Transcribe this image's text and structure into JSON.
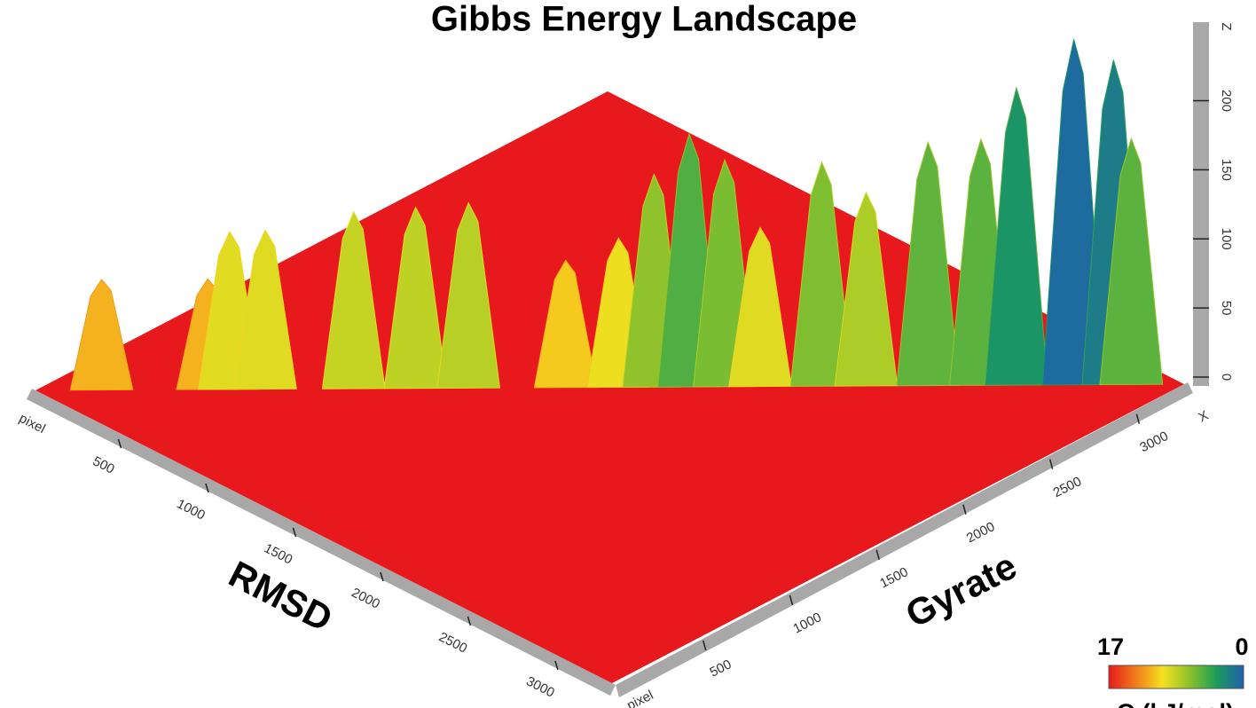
{
  "chart_data": {
    "type": "surface",
    "title": "Gibbs Energy Landscape",
    "x_label": "Gyrate",
    "y_label": "RMSD",
    "x_unit": "pixel",
    "y_unit": "pixel",
    "x_axis_name": "X",
    "z_axis_name": "Z",
    "x": [
      190,
      495,
      558,
      660,
      914,
      1092,
      1244,
      1523,
      1675,
      1777,
      1878,
      1980,
      2082,
      2259,
      2386,
      2564,
      2716,
      2818,
      2983,
      3097,
      3148
    ],
    "y": [
      190,
      495,
      558,
      660,
      914,
      1092,
      1244,
      1523,
      1675,
      1777,
      1878,
      1980,
      2082,
      2259,
      2386,
      2564,
      2716,
      2818,
      2983,
      3097,
      3148
    ],
    "z": [
      80,
      80,
      114,
      115,
      128,
      131,
      134,
      92,
      108,
      154,
      183,
      164,
      115,
      162,
      140,
      176,
      178,
      215,
      250,
      235,
      178
    ],
    "xlim": [
      0,
      3300
    ],
    "ylim": [
      0,
      3300
    ],
    "zlim": [
      0,
      260
    ],
    "xticks": [
      500,
      1000,
      1500,
      2000,
      2500,
      3000
    ],
    "yticks": [
      500,
      1000,
      1500,
      2000,
      2500,
      3000
    ],
    "zticks": [
      0,
      50,
      100,
      150,
      200
    ],
    "colormap": [
      "#e8191c",
      "#f07c1c",
      "#f5e11f",
      "#8cc22b",
      "#1a9c5a",
      "#1f5fb0"
    ],
    "colorbar_labels": [
      "17",
      "0"
    ],
    "colorbar_title": "G (kJ/mol)"
  }
}
